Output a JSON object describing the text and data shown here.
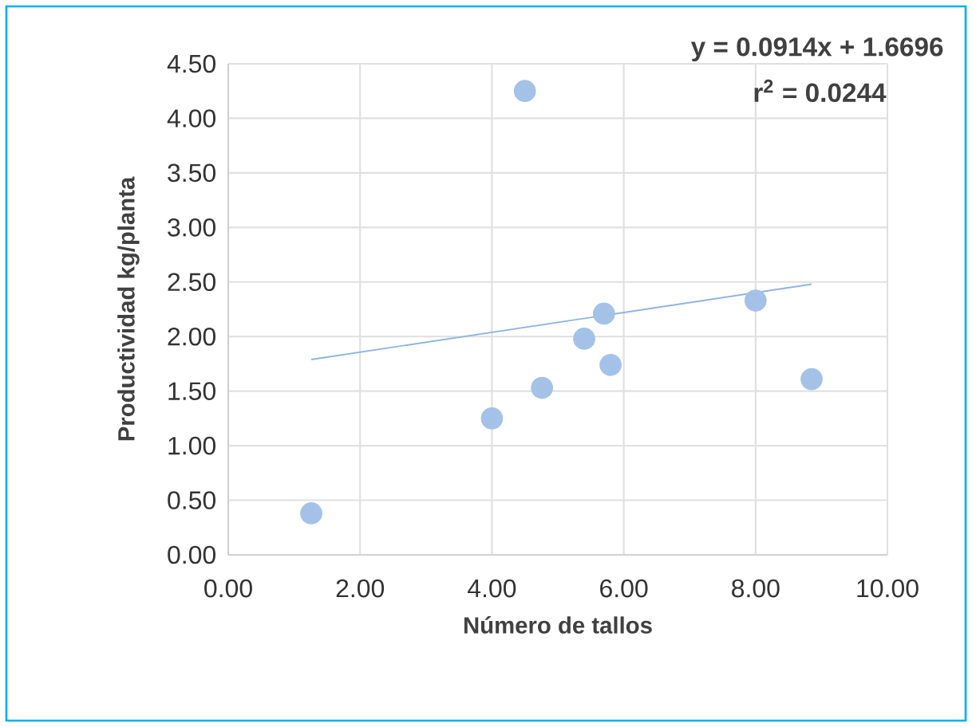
{
  "chart_data": {
    "type": "scatter",
    "xlabel": "Número de tallos",
    "ylabel": "Productividad kg/planta",
    "annotations": [
      "y = 0.0914x + 1.6696",
      "r$^{2}$ = 0.0244"
    ],
    "series": [
      {
        "color": "#a4c2e8",
        "x": [
          1.26,
          4.0,
          4.5,
          4.76,
          5.4,
          5.7,
          5.8,
          8.0,
          8.85
        ],
        "values": [
          0.38,
          1.25,
          4.25,
          1.53,
          1.98,
          2.21,
          1.74,
          2.33,
          1.61
        ]
      },
      {
        "type": "line",
        "marker": "none",
        "color": "#8eb4e3",
        "x": [
          1.26,
          8.85
        ],
        "values": [
          1.79,
          2.48
        ]
      }
    ],
    "marker": "circle",
    "grid": true,
    "xlim": [
      0,
      10
    ],
    "ylim": [
      0,
      4.5
    ],
    "xticks": [
      {
        "value": 0,
        "label": "0.00"
      },
      {
        "value": 2,
        "label": "2.00"
      },
      {
        "value": 4,
        "label": "4.00"
      },
      {
        "value": 6,
        "label": "6.00"
      },
      {
        "value": 8,
        "label": "8.00"
      },
      {
        "value": 10,
        "label": "10.00"
      }
    ],
    "yticks": [
      {
        "value": 0,
        "label": "0.00"
      },
      {
        "value": 0.5,
        "label": "0.50"
      },
      {
        "value": 1,
        "label": "1.00"
      },
      {
        "value": 1.5,
        "label": "1.50"
      },
      {
        "value": 2,
        "label": "2.00"
      },
      {
        "value": 2.5,
        "label": "2.50"
      },
      {
        "value": 3,
        "label": "3.00"
      },
      {
        "value": 3.5,
        "label": "3.50"
      },
      {
        "value": 4,
        "label": "4.00"
      },
      {
        "value": 4.5,
        "label": "4.50"
      }
    ]
  }
}
